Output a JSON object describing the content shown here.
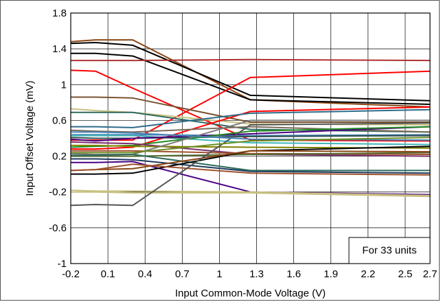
{
  "chart_data": {
    "type": "line",
    "title": "",
    "xlabel": "Input Common-Mode Voltage (V)",
    "ylabel": "Input Offset Voltage (mV)",
    "xlim": [
      -0.2,
      2.7
    ],
    "ylim": [
      -1,
      1.8
    ],
    "x_ticks": [
      "-0.2",
      "0.1",
      "0.4",
      "0.7",
      "1",
      "1.3",
      "1.6",
      "1.9",
      "2.2",
      "2.5",
      "2.7"
    ],
    "x_tick_values": [
      -0.2,
      0.1,
      0.4,
      0.7,
      1.0,
      1.3,
      1.6,
      1.9,
      2.2,
      2.5,
      2.7
    ],
    "y_ticks": [
      "-1",
      "-0.6",
      "-0.2",
      "0.2",
      "0.6",
      "1",
      "1.4",
      "1.8"
    ],
    "y_tick_values": [
      -1,
      -0.6,
      -0.2,
      0.2,
      0.6,
      1,
      1.4,
      1.8
    ],
    "grid": true,
    "legend": "none",
    "annotation": "For 33 units",
    "x": [
      -0.2,
      0.0,
      0.3,
      1.25,
      2.7
    ],
    "series": [
      {
        "color": "#8B4513",
        "values": [
          1.48,
          1.5,
          1.5,
          0.83,
          0.75
        ]
      },
      {
        "color": "#000000",
        "values": [
          1.46,
          1.47,
          1.44,
          0.88,
          0.82
        ]
      },
      {
        "color": "#000000",
        "values": [
          1.35,
          1.35,
          1.32,
          0.83,
          0.78
        ]
      },
      {
        "color": "#B03030",
        "values": [
          1.27,
          1.27,
          1.27,
          1.28,
          1.27
        ]
      },
      {
        "color": "#FF0000",
        "values": [
          1.16,
          1.15,
          0.96,
          0.38,
          0.37
        ]
      },
      {
        "color": "#FF0000",
        "values": [
          0.38,
          0.38,
          0.38,
          1.08,
          1.15
        ]
      },
      {
        "color": "#7A5230",
        "values": [
          0.86,
          0.86,
          0.85,
          0.58,
          0.58
        ]
      },
      {
        "color": "#C8C080",
        "values": [
          0.73,
          0.71,
          0.69,
          0.56,
          0.55
        ]
      },
      {
        "color": "#2E6B5E",
        "values": [
          0.69,
          0.69,
          0.69,
          0.5,
          0.47
        ]
      },
      {
        "color": "#FF0000",
        "values": [
          0.28,
          0.28,
          0.3,
          0.7,
          0.75
        ]
      },
      {
        "color": "#2E6B8A",
        "values": [
          0.53,
          0.53,
          0.52,
          0.68,
          0.72
        ]
      },
      {
        "color": "#7A6A5A",
        "values": [
          0.49,
          0.48,
          0.47,
          0.53,
          0.47
        ]
      },
      {
        "color": "#4682B4",
        "values": [
          0.44,
          0.44,
          0.44,
          0.43,
          0.44
        ]
      },
      {
        "color": "#40B8B8",
        "values": [
          0.43,
          0.43,
          0.43,
          0.35,
          0.33
        ]
      },
      {
        "color": "#2F4F4F",
        "values": [
          0.41,
          0.4,
          0.4,
          0.42,
          0.43
        ]
      },
      {
        "color": "#4B0082",
        "values": [
          0.39,
          0.37,
          0.4,
          0.45,
          0.53
        ]
      },
      {
        "color": "#228B22",
        "values": [
          0.3,
          0.31,
          0.32,
          0.48,
          0.53
        ]
      },
      {
        "color": "#7B2D6B",
        "values": [
          0.36,
          0.35,
          0.34,
          0.22,
          0.2
        ]
      },
      {
        "color": "#808000",
        "values": [
          0.32,
          0.32,
          0.31,
          0.3,
          0.29
        ]
      },
      {
        "color": "#A0522D",
        "values": [
          0.26,
          0.26,
          0.26,
          0.23,
          0.22
        ]
      },
      {
        "color": "#7A7A7A",
        "values": [
          0.23,
          0.22,
          0.22,
          0.6,
          0.6
        ]
      },
      {
        "color": "#556B2F",
        "values": [
          0.2,
          0.2,
          0.2,
          0.22,
          0.24
        ]
      },
      {
        "color": "#1E3A5F",
        "values": [
          0.17,
          0.17,
          0.16,
          0.03,
          0.01
        ]
      },
      {
        "color": "#2E6B5E",
        "values": [
          0.21,
          0.21,
          0.22,
          0.04,
          0.04
        ]
      },
      {
        "color": "#4B0082",
        "values": [
          0.13,
          0.13,
          0.14,
          -0.2,
          -0.23
        ]
      },
      {
        "color": "#000000",
        "values": [
          0.0,
          0.0,
          0.01,
          0.26,
          0.31
        ]
      },
      {
        "color": "#8B4513",
        "values": [
          0.04,
          0.05,
          0.06,
          0.26,
          0.25
        ]
      },
      {
        "color": "#A0522D",
        "values": [
          0.04,
          0.05,
          0.11,
          0.01,
          -0.01
        ]
      },
      {
        "color": "#C8C080",
        "values": [
          -0.18,
          -0.19,
          -0.19,
          -0.2,
          -0.24
        ]
      },
      {
        "color": "#C8C080",
        "values": [
          -0.2,
          -0.2,
          -0.21,
          -0.21,
          -0.25
        ]
      },
      {
        "color": "#555555",
        "values": [
          -0.35,
          -0.34,
          -0.35,
          0.55,
          0.57
        ]
      },
      {
        "color": "#4682B4",
        "values": [
          0.47,
          0.47,
          0.46,
          0.39,
          0.38
        ]
      },
      {
        "color": "#6B8E23",
        "values": [
          0.24,
          0.24,
          0.24,
          0.37,
          0.41
        ]
      }
    ]
  }
}
